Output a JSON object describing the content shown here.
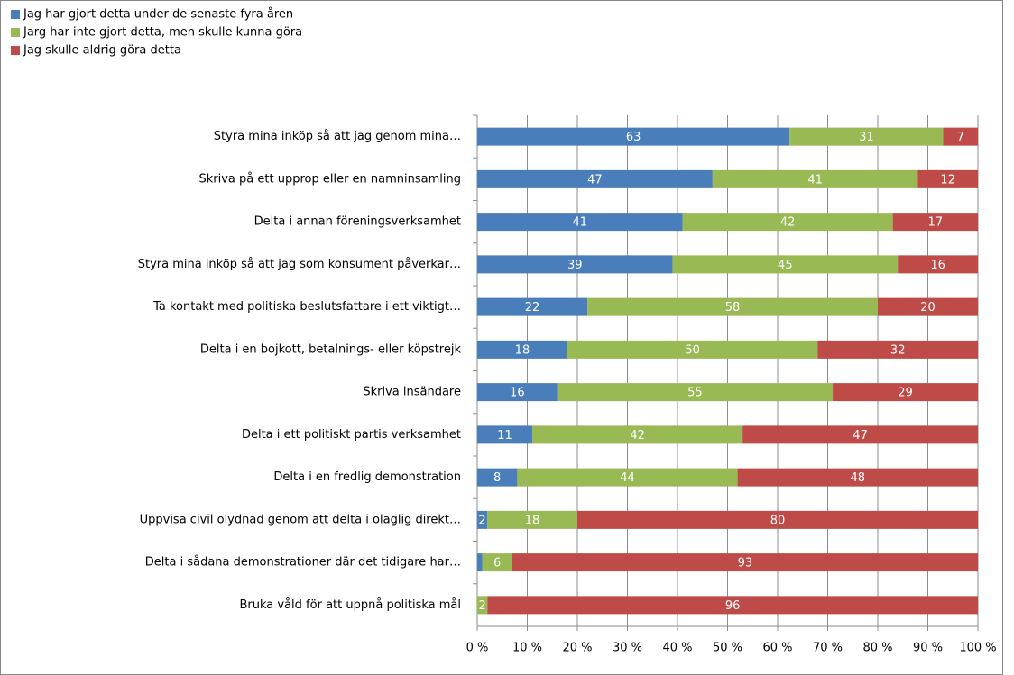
{
  "chart_data": {
    "type": "bar",
    "orientation": "horizontal",
    "stacked_percent": true,
    "categories": [
      "Styra mina inköp så att jag genom mina…",
      "Skriva på ett upprop eller en namninsamling",
      "Delta i annan föreningsverksamhet",
      "Styra mina inköp så att jag som konsument påverkar…",
      "Ta kontakt med politiska beslutsfattare i ett viktigt…",
      "Delta i en bojkott, betalnings- eller köpstrejk",
      "Skriva insändare",
      "Delta i ett politiskt partis verksamhet",
      "Delta i en fredlig demonstration",
      "Uppvisa civil olydnad genom att delta i olaglig direkt…",
      "Delta i sådana demonstrationer där det tidigare har…",
      "Bruka våld för att uppnå politiska mål"
    ],
    "series": [
      {
        "name": "Jag har gjort detta under de senaste fyra åren",
        "color": "#4a7ebb",
        "values": [
          63,
          47,
          41,
          39,
          22,
          18,
          16,
          11,
          8,
          2,
          1,
          null
        ],
        "value_labels": [
          "63",
          "47",
          "41",
          "39",
          "22",
          "18",
          "16",
          "11",
          "8",
          "2",
          null,
          null
        ]
      },
      {
        "name": "Jarg har inte gjort detta, men skulle kunna göra",
        "color": "#98b954",
        "values": [
          31,
          41,
          42,
          45,
          58,
          50,
          55,
          42,
          44,
          18,
          6,
          2
        ]
      },
      {
        "name": "Jag skulle aldrig göra detta",
        "color": "#be4b48",
        "values": [
          7,
          12,
          17,
          16,
          20,
          32,
          29,
          47,
          48,
          80,
          93,
          96
        ]
      }
    ],
    "xlim": [
      0,
      100
    ],
    "xticks": [
      {
        "value": 0,
        "label": "0 %"
      },
      {
        "value": 10,
        "label": "10 %"
      },
      {
        "value": 20,
        "label": "20 %"
      },
      {
        "value": 30,
        "label": "30 %"
      },
      {
        "value": 40,
        "label": "40 %"
      },
      {
        "value": 50,
        "label": "50 %"
      },
      {
        "value": 60,
        "label": "60 %"
      },
      {
        "value": 70,
        "label": "70 %"
      },
      {
        "value": 80,
        "label": "80 %"
      },
      {
        "value": 90,
        "label": "90 %"
      },
      {
        "value": 100,
        "label": "100 %"
      }
    ],
    "grid": true,
    "legend": "top-left"
  }
}
